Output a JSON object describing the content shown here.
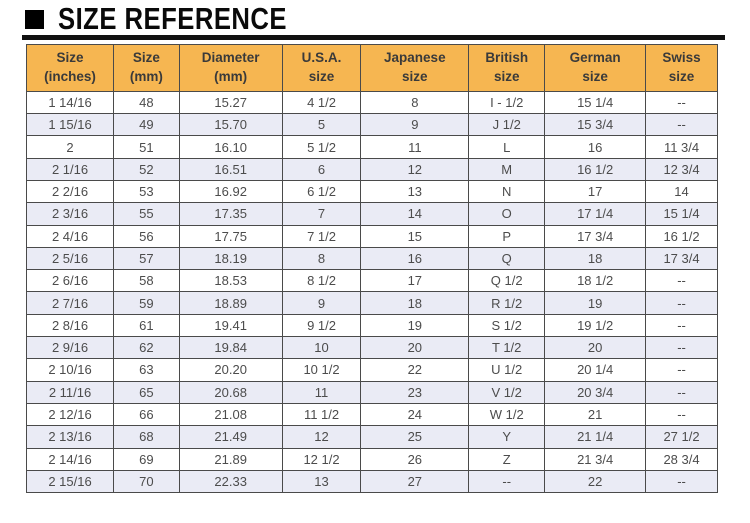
{
  "title": "SIZE REFERENCE",
  "chart_data": {
    "type": "table",
    "title": "SIZE REFERENCE",
    "columns": [
      "Size (inches)",
      "Size (mm)",
      "Diameter (mm)",
      "U.S.A. size",
      "Japanese size",
      "British size",
      "German size",
      "Swiss size"
    ],
    "header_lines": [
      [
        "Size",
        "(inches)"
      ],
      [
        "Size",
        "(mm)"
      ],
      [
        "Diameter",
        "(mm)"
      ],
      [
        "U.S.A.",
        "size"
      ],
      [
        "Japanese",
        "size"
      ],
      [
        "British",
        "size"
      ],
      [
        "German",
        "size"
      ],
      [
        "Swiss",
        "size"
      ]
    ],
    "rows": [
      [
        "1 14/16",
        "48",
        "15.27",
        "4 1/2",
        "8",
        "I - 1/2",
        "15 1/4",
        "--"
      ],
      [
        "1 15/16",
        "49",
        "15.70",
        "5",
        "9",
        "J 1/2",
        "15 3/4",
        "--"
      ],
      [
        "2",
        "51",
        "16.10",
        "5 1/2",
        "11",
        "L",
        "16",
        "11 3/4"
      ],
      [
        "2 1/16",
        "52",
        "16.51",
        "6",
        "12",
        "M",
        "16 1/2",
        "12 3/4"
      ],
      [
        "2 2/16",
        "53",
        "16.92",
        "6 1/2",
        "13",
        "N",
        "17",
        "14"
      ],
      [
        "2 3/16",
        "55",
        "17.35",
        "7",
        "14",
        "O",
        "17 1/4",
        "15 1/4"
      ],
      [
        "2 4/16",
        "56",
        "17.75",
        "7 1/2",
        "15",
        "P",
        "17 3/4",
        "16 1/2"
      ],
      [
        "2 5/16",
        "57",
        "18.19",
        "8",
        "16",
        "Q",
        "18",
        "17 3/4"
      ],
      [
        "2 6/16",
        "58",
        "18.53",
        "8 1/2",
        "17",
        "Q 1/2",
        "18 1/2",
        "--"
      ],
      [
        "2 7/16",
        "59",
        "18.89",
        "9",
        "18",
        "R 1/2",
        "19",
        "--"
      ],
      [
        "2 8/16",
        "61",
        "19.41",
        "9 1/2",
        "19",
        "S 1/2",
        "19 1/2",
        "--"
      ],
      [
        "2 9/16",
        "62",
        "19.84",
        "10",
        "20",
        "T 1/2",
        "20",
        "--"
      ],
      [
        "2 10/16",
        "63",
        "20.20",
        "10 1/2",
        "22",
        "U 1/2",
        "20 1/4",
        "--"
      ],
      [
        "2 11/16",
        "65",
        "20.68",
        "11",
        "23",
        "V 1/2",
        "20 3/4",
        "--"
      ],
      [
        "2 12/16",
        "66",
        "21.08",
        "11 1/2",
        "24",
        "W 1/2",
        "21",
        "--"
      ],
      [
        "2 13/16",
        "68",
        "21.49",
        "12",
        "25",
        "Y",
        "21 1/4",
        "27 1/2"
      ],
      [
        "2 14/16",
        "69",
        "21.89",
        "12 1/2",
        "26",
        "Z",
        "21 3/4",
        "28 3/4"
      ],
      [
        "2 15/16",
        "70",
        "22.33",
        "13",
        "27",
        "--",
        "22",
        "--"
      ]
    ]
  },
  "colors": {
    "header_bg": "#f6b651",
    "alt_row_bg": "#eaebf5",
    "border": "#4a4a4a",
    "header_text": "#3a3a3a",
    "cell_text": "#4c4c4c",
    "title_text": "#0a0a0a"
  }
}
